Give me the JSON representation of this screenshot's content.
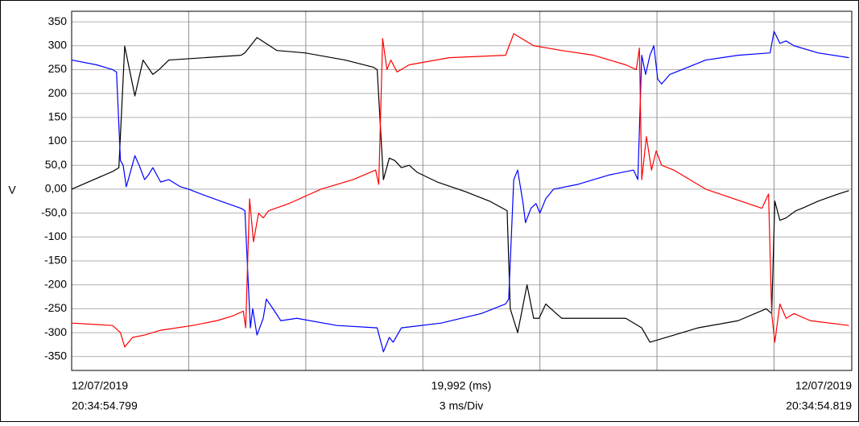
{
  "chart_data": {
    "type": "line",
    "y_label": "V",
    "xlim": [
      0,
      19.992
    ],
    "xticks": [
      0,
      3,
      6,
      9,
      12,
      15,
      18
    ],
    "ylim": [
      -379,
      372
    ],
    "yticks": [
      350,
      300,
      250,
      200,
      150,
      100,
      {
        "value": 50,
        "label": "50,0"
      },
      {
        "value": 0,
        "label": "0,00"
      },
      {
        "value": -50,
        "label": "-50,0"
      },
      -100,
      -150,
      -200,
      -250,
      -300,
      -350
    ],
    "grid": true,
    "footer": {
      "left": [
        "12/07/2019",
        "20:34:54.799"
      ],
      "center": [
        "19,992 (ms)",
        "3 ms/Div"
      ],
      "right": [
        "12/07/2019",
        "20:34:54.819"
      ]
    },
    "series": [
      {
        "color": "#000000",
        "x": [
          0,
          1.05,
          1.21,
          1.36,
          1.62,
          1.83,
          2.08,
          2.24,
          2.49,
          4.34,
          4.44,
          4.75,
          5.26,
          5.98,
          7.01,
          7.73,
          7.83,
          7.99,
          8.14,
          8.28,
          8.45,
          8.65,
          8.86,
          9.37,
          10.09,
          10.71,
          11.16,
          11.24,
          11.43,
          11.67,
          11.84,
          11.98,
          12.15,
          12.35,
          12.56,
          14.2,
          14.61,
          14.82,
          15.23,
          16.05,
          17.08,
          17.8,
          17.94,
          18.02,
          18.15,
          18.31,
          18.56,
          18.72,
          19.13,
          19.65,
          19.92
        ],
        "values": [
          0,
          37,
          45,
          299,
          195,
          270,
          240,
          250,
          270,
          280,
          285,
          317,
          290,
          285,
          270,
          255,
          250,
          20,
          65,
          60,
          45,
          50,
          35,
          15,
          -5,
          -25,
          -45,
          -250,
          -300,
          -200,
          -270,
          -270,
          -240,
          -255,
          -270,
          -270,
          -290,
          -320,
          -310,
          -290,
          -275,
          -250,
          -260,
          -25,
          -65,
          -60,
          -45,
          -40,
          -25,
          -10,
          -3
        ]
      },
      {
        "color": "#0000ff",
        "x": [
          0,
          0.64,
          1.05,
          1.15,
          1.25,
          1.32,
          1.4,
          1.52,
          1.62,
          1.73,
          1.87,
          1.97,
          2.08,
          2.28,
          2.49,
          2.79,
          3.0,
          3.31,
          3.82,
          4.34,
          4.44,
          4.58,
          4.64,
          4.75,
          4.91,
          4.99,
          5.16,
          5.36,
          5.77,
          6.8,
          7.83,
          7.99,
          8.14,
          8.24,
          8.45,
          9.47,
          10.5,
          11.12,
          11.2,
          11.33,
          11.43,
          11.57,
          11.63,
          11.77,
          11.9,
          12.0,
          12.15,
          12.35,
          12.97,
          13.79,
          14.4,
          14.51,
          14.61,
          14.71,
          14.82,
          14.92,
          15.02,
          15.12,
          15.33,
          15.64,
          16.25,
          17.08,
          17.9,
          18.0,
          18.15,
          18.31,
          18.51,
          19.13,
          19.92
        ],
        "values": [
          270,
          260,
          250,
          245,
          60,
          50,
          5,
          40,
          70,
          50,
          20,
          30,
          45,
          15,
          20,
          5,
          0,
          -10,
          -25,
          -40,
          -45,
          -290,
          -250,
          -305,
          -270,
          -230,
          -250,
          -275,
          -270,
          -285,
          -290,
          -340,
          -310,
          -320,
          -290,
          -280,
          -260,
          -240,
          -230,
          20,
          40,
          -30,
          -70,
          -40,
          -30,
          -50,
          -20,
          0,
          10,
          30,
          40,
          20,
          280,
          240,
          280,
          300,
          230,
          220,
          240,
          250,
          270,
          280,
          285,
          330,
          305,
          310,
          300,
          285,
          275
        ]
      },
      {
        "color": "#ff0000",
        "x": [
          0,
          1.05,
          1.25,
          1.36,
          1.56,
          1.87,
          2.28,
          3.1,
          3.72,
          4.13,
          4.4,
          4.46,
          4.56,
          4.66,
          4.79,
          4.91,
          5.05,
          5.57,
          6.39,
          7.21,
          7.79,
          7.87,
          7.97,
          8.08,
          8.18,
          8.34,
          8.65,
          9.68,
          11.12,
          11.33,
          11.84,
          12.56,
          13.38,
          14.2,
          14.47,
          14.55,
          14.61,
          14.73,
          14.86,
          14.98,
          15.12,
          15.43,
          16.25,
          17.69,
          17.86,
          17.94,
          18.02,
          18.15,
          18.31,
          18.51,
          18.93,
          19.92
        ],
        "values": [
          -280,
          -285,
          -300,
          -330,
          -310,
          -305,
          -295,
          -285,
          -275,
          -265,
          -255,
          -290,
          -20,
          -110,
          -50,
          -60,
          -45,
          -30,
          0,
          20,
          40,
          10,
          315,
          250,
          270,
          245,
          260,
          275,
          280,
          325,
          300,
          290,
          280,
          260,
          250,
          295,
          20,
          110,
          40,
          80,
          50,
          40,
          0,
          -40,
          -10,
          -260,
          -320,
          -240,
          -270,
          -260,
          -275,
          -285
        ]
      }
    ]
  }
}
